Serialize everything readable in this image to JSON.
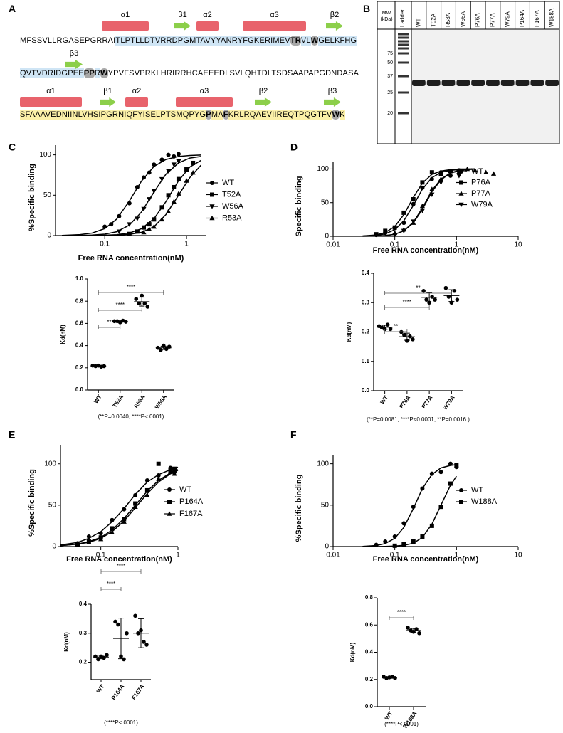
{
  "sequence": {
    "panel": "A",
    "helix_color": "#e8636c",
    "strand_color": "#8ccf4a",
    "marked_color": "#a8a8a8",
    "structure": [
      {
        "label": "α1",
        "kind": "helix"
      },
      {
        "label": "β1",
        "kind": "strand"
      },
      {
        "label": "α2",
        "kind": "helix"
      },
      {
        "label": "α3",
        "kind": "helix"
      },
      {
        "label": "β2",
        "kind": "strand"
      },
      {
        "label": "β3",
        "kind": "strand"
      },
      {
        "label": "α1",
        "kind": "helix"
      },
      {
        "label": "β1",
        "kind": "strand"
      },
      {
        "label": "α2",
        "kind": "helix"
      },
      {
        "label": "α3",
        "kind": "helix"
      },
      {
        "label": "β2",
        "kind": "strand"
      },
      {
        "label": "β3",
        "kind": "strand"
      }
    ],
    "lines": [
      [
        {
          "text": "MFSSVLLRGASEPGRRAI"
        },
        {
          "text": "TLPTLLDTVRRDPGMTAVYYANRYFGKERIMEV",
          "bg": "#cfe5f5"
        },
        {
          "text": "TR",
          "bg": "#cfe5f5",
          "marked": true
        },
        {
          "text": "VL",
          "bg": "#cfe5f5"
        },
        {
          "text": "W",
          "bg": "#cfe5f5",
          "marked": true
        },
        {
          "text": "GELKFHG",
          "bg": "#cfe5f5"
        }
      ],
      [
        {
          "text": "QVTVDRIDGPEE",
          "bg": "#cfe5f5"
        },
        {
          "text": "PP",
          "bg": "#cfe5f5",
          "marked": true
        },
        {
          "text": "R",
          "bg": "#cfe5f5"
        },
        {
          "text": "W",
          "bg": "#cfe5f5",
          "marked": true
        },
        {
          "text": "YPVFSVPRKLHRIRRHCAEEEDLSVLQHTDLTSDSAAPAPGDNDASA"
        }
      ],
      [
        {
          "text": "SFAAAVEDNIINLVHSIPGRNIQFYISELPTSMQPYG",
          "bg": "#fbf0a8"
        },
        {
          "text": "P",
          "bg": "#fbf0a8",
          "marked": true
        },
        {
          "text": "MA",
          "bg": "#fbf0a8"
        },
        {
          "text": "F",
          "bg": "#fbf0a8",
          "marked": true
        },
        {
          "text": "KRLRQAEVIIREQTPQGTFV",
          "bg": "#fbf0a8"
        },
        {
          "text": "W",
          "bg": "#fbf0a8",
          "marked": true
        },
        {
          "text": "K",
          "bg": "#fbf0a8"
        }
      ]
    ]
  },
  "gel": {
    "panel": "B",
    "mw_label": "MW (kDa)",
    "lanes": [
      "Ladder",
      "WT",
      "T52A",
      "R53A",
      "W56A",
      "P76A",
      "P77A",
      "W79A",
      "P164A",
      "F167A",
      "W188A"
    ],
    "markers": [
      75,
      50,
      37,
      25,
      20
    ]
  },
  "chart_data": [
    {
      "type": "scatter",
      "panel": "C",
      "color": "#000000",
      "xlabel": "Free RNA concentration(nM)",
      "ylabel": "%Specific binding",
      "xscale": "log",
      "xlim": [
        0.025,
        1.75
      ],
      "xticks": [
        0.1,
        1
      ],
      "ylim": [
        0,
        112
      ],
      "yticks": [
        0,
        50,
        100
      ],
      "legend": "right",
      "x": [
        0.1,
        0.12,
        0.15,
        0.2,
        0.25,
        0.3,
        0.35,
        0.4,
        0.5,
        0.6,
        0.7,
        0.8,
        1.0,
        1.2
      ],
      "fit_x": [
        0.03,
        0.05,
        0.07,
        0.1,
        0.14,
        0.2,
        0.28,
        0.4,
        0.56,
        0.8,
        1.1,
        1.5
      ],
      "series": [
        {
          "name": "WT",
          "marker": "circle",
          "values": [
            11,
            14,
            24,
            40,
            60,
            72,
            78,
            88,
            94,
            100,
            98,
            101,
            null,
            null
          ],
          "fit": [
            0.3,
            1.2,
            3.1,
            8.6,
            20.5,
            42.9,
            67.3,
            85.7,
            94.3,
            98,
            99.2,
            99.7
          ]
        },
        {
          "name": "T52A",
          "marker": "square",
          "values": [
            null,
            null,
            null,
            2,
            5,
            10,
            14,
            20,
            35,
            50,
            60,
            70,
            82,
            90
          ],
          "fit": [
            0,
            0,
            0.1,
            0.4,
            1.1,
            3.2,
            8.4,
            21,
            42,
            68,
            85,
            93
          ]
        },
        {
          "name": "W56A",
          "marker": "triangle-down",
          "values": [
            null,
            null,
            5,
            14,
            21,
            33,
            45,
            55,
            70,
            80,
            88,
            92,
            null,
            null
          ],
          "fit": [
            0,
            0.2,
            0.6,
            1.8,
            4.8,
            13,
            29,
            54,
            76,
            90,
            96,
            98
          ]
        },
        {
          "name": "R53A",
          "marker": "triangle-up",
          "values": [
            null,
            null,
            null,
            null,
            null,
            4,
            8,
            11,
            20,
            30,
            42,
            52,
            68,
            78
          ],
          "fit": [
            0,
            0,
            0.1,
            0.2,
            0.5,
            1.5,
            4,
            11,
            26,
            50,
            72,
            87
          ]
        }
      ]
    },
    {
      "type": "strip",
      "color": "#000000",
      "ylabel": "Kd(nM)",
      "categories": [
        "WT",
        "T52A",
        "R53A",
        "W56A"
      ],
      "points": [
        [
          0.22,
          0.215,
          0.22,
          0.21,
          0.215
        ],
        [
          0.62,
          0.62,
          0.61,
          0.625,
          0.615
        ],
        [
          0.82,
          0.78,
          0.85,
          0.78,
          0.75
        ],
        [
          0.38,
          0.36,
          0.4,
          0.37,
          0.39
        ]
      ],
      "means": [
        0.216,
        0.617,
        0.796,
        0.38
      ],
      "sd": [
        0.004,
        0.006,
        0.04,
        0.015
      ],
      "ylim": [
        0,
        1
      ],
      "yticks": [
        {
          "value": 0,
          "label": "0.0"
        },
        0.2,
        0.4,
        0.6,
        0.8,
        {
          "value": 1,
          "label": "1.0"
        }
      ],
      "comparisons": [
        {
          "from": "WT",
          "to": "T52A",
          "label": "**"
        },
        {
          "from": "WT",
          "to": "R53A",
          "label": "****"
        },
        {
          "from": "WT",
          "to": "W56A",
          "label": "****"
        }
      ],
      "note": "(**P=0.0040, ****P<.0001)"
    },
    {
      "type": "scatter",
      "panel": "D",
      "color": "#000000",
      "xlabel": "Free RNA concentration(nM)",
      "ylabel": "Specific binding",
      "xscale": "log",
      "xlim": [
        0.01,
        10
      ],
      "xticks": [
        0.01,
        0.1,
        1,
        10
      ],
      "ylim": [
        0,
        110
      ],
      "yticks": [
        0,
        50,
        100
      ],
      "legend": "right",
      "x": [
        0.05,
        0.07,
        0.1,
        0.14,
        0.2,
        0.28,
        0.4,
        0.56,
        0.8,
        1.1,
        1.5,
        2,
        3,
        4
      ],
      "fit_x": [
        0.03,
        0.05,
        0.07,
        0.1,
        0.14,
        0.2,
        0.28,
        0.4,
        0.56,
        0.8,
        1.1,
        1.5,
        2
      ],
      "series": [
        {
          "name": "WT",
          "marker": "circle",
          "values": [
            2,
            5,
            12,
            20,
            48,
            72,
            85,
            95,
            90,
            98,
            null,
            null,
            null,
            null
          ],
          "fit": [
            0.3,
            1.3,
            3.6,
            9.7,
            23,
            46,
            70,
            87,
            95,
            98,
            99,
            100,
            100
          ]
        },
        {
          "name": "P76A",
          "marker": "square",
          "values": [
            3,
            8,
            13,
            35,
            55,
            80,
            95,
            92,
            97,
            null,
            null,
            null,
            null,
            null
          ],
          "fit": [
            0.5,
            2,
            5.6,
            14.6,
            32,
            58,
            79,
            92,
            97,
            99,
            100,
            100,
            100
          ]
        },
        {
          "name": "P77A",
          "marker": "triangle-up",
          "values": [
            null,
            null,
            5,
            10,
            20,
            45,
            70,
            85,
            92,
            96,
            100,
            98,
            95,
            93
          ],
          "fit": [
            0.1,
            0.4,
            1.2,
            3,
            8,
            21,
            42,
            68,
            85,
            94,
            98,
            99,
            100
          ]
        },
        {
          "name": "W79A",
          "marker": "triangle-down",
          "values": [
            null,
            null,
            2,
            8,
            22,
            38,
            62,
            80,
            95,
            90,
            null,
            null,
            null,
            null
          ],
          "fit": [
            0.1,
            0.4,
            1,
            3,
            8,
            20,
            40,
            66,
            84,
            94,
            97,
            99,
            100
          ]
        }
      ]
    },
    {
      "type": "strip",
      "color": "#000000",
      "ylabel": "Kd(nM)",
      "categories": [
        "WT",
        "P76A",
        "P77A",
        "W79A"
      ],
      "points": [
        [
          0.22,
          0.215,
          0.21,
          0.225,
          0.21
        ],
        [
          0.2,
          0.19,
          0.17,
          0.185,
          0.175
        ],
        [
          0.34,
          0.31,
          0.3,
          0.32,
          0.31
        ],
        [
          0.35,
          0.32,
          0.3,
          0.34,
          0.31
        ]
      ],
      "means": [
        0.216,
        0.184,
        0.318,
        0.324
      ],
      "sd": [
        0.007,
        0.012,
        0.016,
        0.02
      ],
      "ylim": [
        0,
        0.4
      ],
      "yticks": [
        {
          "value": 0,
          "label": "0.0"
        },
        0.1,
        0.2,
        0.3,
        0.4
      ],
      "comparisons": [
        {
          "from": "WT",
          "to": "P76A",
          "label": "**"
        },
        {
          "from": "WT",
          "to": "P77A",
          "label": "****"
        },
        {
          "from": "WT",
          "to": "W79A",
          "label": "**"
        }
      ],
      "note": "(**P=0.0081, ****P<0.0001, **P=0.0016  )"
    },
    {
      "type": "scatter",
      "panel": "E",
      "color": "#000000",
      "xlabel": "Free RNA concentration(nM)",
      "ylabel": "%Specific binding",
      "xscale": "log",
      "xlim": [
        0.03,
        1
      ],
      "xticks": [
        0.1,
        1
      ],
      "ylim": [
        0,
        123
      ],
      "yticks": [
        0,
        50,
        100
      ],
      "legend": "right",
      "x": [
        0.05,
        0.07,
        0.1,
        0.14,
        0.2,
        0.28,
        0.4,
        0.56,
        0.8,
        0.9
      ],
      "fit_x": [
        0.03,
        0.05,
        0.07,
        0.1,
        0.14,
        0.2,
        0.28,
        0.4,
        0.56,
        0.8,
        1.0
      ],
      "series": [
        {
          "name": "WT",
          "marker": "circle",
          "values": [
            4,
            12,
            16,
            32,
            45,
            62,
            80,
            86,
            95,
            90
          ],
          "fit": [
            1.9,
            5,
            10,
            18,
            30,
            46,
            63,
            78,
            87,
            93,
            96
          ]
        },
        {
          "name": "P164A",
          "marker": "square",
          "values": [
            2,
            6,
            11,
            22,
            33,
            52,
            68,
            100,
            92,
            94
          ],
          "fit": [
            1.1,
            3,
            6,
            11,
            20,
            34,
            50,
            67,
            80,
            89,
            93
          ]
        },
        {
          "name": "F167A",
          "marker": "triangle-up",
          "values": [
            3,
            5,
            9,
            17,
            30,
            48,
            62,
            82,
            90,
            88
          ],
          "fit": [
            1,
            3,
            5,
            10,
            18,
            31,
            47,
            64,
            78,
            88,
            92
          ]
        }
      ]
    },
    {
      "type": "strip",
      "color": "#000000",
      "ylabel": "Kd(nM)",
      "categories": [
        "WT",
        "P164A",
        "F167A"
      ],
      "points": [
        [
          0.22,
          0.21,
          0.22,
          0.215,
          0.225
        ],
        [
          0.34,
          0.33,
          0.22,
          0.21,
          0.3
        ],
        [
          0.36,
          0.3,
          0.31,
          0.27,
          0.26
        ]
      ],
      "means": [
        0.218,
        0.282,
        0.3
      ],
      "sd": [
        0.006,
        0.07,
        0.05
      ],
      "ylim": [
        0.14,
        0.4
      ],
      "yticks": [
        0.2,
        0.3,
        0.4
      ],
      "comparisons": [
        {
          "from": "WT",
          "to": "P164A",
          "label": "****"
        },
        {
          "from": "WT",
          "to": "F167A",
          "label": "****"
        }
      ],
      "note": "(****P<.0001)"
    },
    {
      "type": "scatter",
      "panel": "F",
      "color": "#000000",
      "xlabel": "Free RNA concentration(nM)",
      "ylabel": "%Specific binding",
      "xscale": "log",
      "xlim": [
        0.01,
        10
      ],
      "xticks": [
        0.01,
        0.1,
        1,
        10
      ],
      "ylim": [
        0,
        110
      ],
      "yticks": [
        0,
        50,
        100
      ],
      "legend": "right",
      "x": [
        0.05,
        0.07,
        0.1,
        0.14,
        0.2,
        0.28,
        0.4,
        0.56,
        0.8,
        1.0
      ],
      "fit_x": [
        0.03,
        0.05,
        0.07,
        0.1,
        0.14,
        0.2,
        0.28,
        0.4,
        0.56,
        0.8,
        1.0
      ],
      "series": [
        {
          "name": "WT",
          "marker": "circle",
          "values": [
            2,
            6,
            12,
            28,
            48,
            70,
            88,
            90,
            100,
            96
          ],
          "fit": [
            0.3,
            1.3,
            3.6,
            10,
            23,
            46,
            70,
            87,
            95,
            98,
            99
          ]
        },
        {
          "name": "W188A",
          "marker": "square",
          "values": [
            null,
            null,
            1,
            3,
            6,
            12,
            25,
            48,
            76,
            98
          ],
          "fit": [
            0,
            0,
            0.2,
            0.6,
            1.5,
            4,
            11,
            27,
            50,
            74,
            85
          ]
        }
      ]
    },
    {
      "type": "strip",
      "color": "#000000",
      "ylabel": "Kd(nM)",
      "categories": [
        "WT",
        "W188A"
      ],
      "points": [
        [
          0.22,
          0.21,
          0.215,
          0.22,
          0.21
        ],
        [
          0.58,
          0.56,
          0.55,
          0.57,
          0.54
        ]
      ],
      "means": [
        0.215,
        0.56
      ],
      "sd": [
        0.005,
        0.015
      ],
      "ylim": [
        0,
        0.8
      ],
      "yticks": [
        {
          "value": 0,
          "label": "0.0"
        },
        0.2,
        0.4,
        0.6,
        0.8
      ],
      "comparisons": [
        {
          "from": "WT",
          "to": "W188A",
          "label": "****"
        }
      ],
      "note": "(****P<.0001)"
    }
  ]
}
